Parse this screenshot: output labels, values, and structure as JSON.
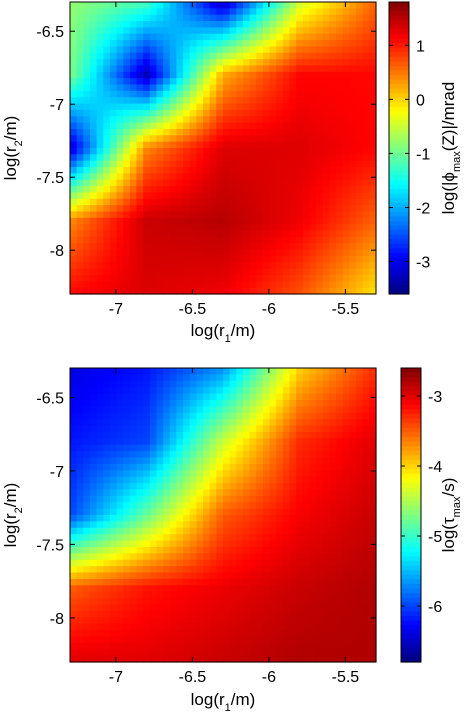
{
  "chart_data": [
    {
      "type": "heatmap",
      "xlabel": {
        "pre": "log(r",
        "sub": "1",
        "post": "/m)"
      },
      "ylabel": {
        "pre": "log(r",
        "sub": "2",
        "post": "/m)"
      },
      "colorbar_label": {
        "pre": "log(|ϕ",
        "sub": "max",
        "post": "(Z)|/mrad"
      },
      "xlim": [
        -7.3,
        -5.3
      ],
      "ylim": [
        -8.3,
        -6.3
      ],
      "xticks": [
        -7,
        -6.5,
        -6,
        -5.5
      ],
      "xtick_labels": [
        "-7",
        "-6.5",
        "-6",
        "-5.5"
      ],
      "yticks": [
        -6.5,
        -7,
        -7.5,
        -8
      ],
      "ytick_labels": [
        "-6.5",
        "-7",
        "-7.5",
        "-8"
      ],
      "clim": [
        -3.6,
        1.8
      ],
      "cbar_ticks": [
        1,
        0,
        -1,
        -2,
        -3
      ],
      "cbar_tick_labels": [
        "1",
        "0",
        "-1",
        "-2",
        "-3"
      ],
      "colormap": "jet",
      "surface_samples": {
        "description_of_axes": "rows: log(r2) from -6.3 to -8.3; columns: log(r1) from -7.3 to -5.3",
        "x": [
          -7.3,
          -6.8,
          -6.3,
          -5.8,
          -5.3
        ],
        "y": [
          -6.3,
          -6.8,
          -7.3,
          -7.8,
          -8.3
        ],
        "z": [
          [
            -0.8,
            -1.2,
            -3.3,
            -0.5,
            0.6
          ],
          [
            -0.9,
            -3.3,
            0.2,
            1.1,
            1.1
          ],
          [
            -3.2,
            0.4,
            1.3,
            1.3,
            1.1
          ],
          [
            0.4,
            1.4,
            1.5,
            1.2,
            0.6
          ],
          [
            1.1,
            1.3,
            1.2,
            0.7,
            -0.1
          ]
        ]
      }
    },
    {
      "type": "heatmap",
      "xlabel": {
        "pre": "log(r",
        "sub": "1",
        "post": "/m)"
      },
      "ylabel": {
        "pre": "log(r",
        "sub": "2",
        "post": "/m)"
      },
      "colorbar_label": {
        "pre": "log(τ",
        "sub": "max",
        "post": "/s)"
      },
      "xlim": [
        -7.3,
        -5.3
      ],
      "ylim": [
        -8.3,
        -6.3
      ],
      "xticks": [
        -7,
        -6.5,
        -6,
        -5.5
      ],
      "xtick_labels": [
        "-7",
        "-6.5",
        "-6",
        "-5.5"
      ],
      "yticks": [
        -6.5,
        -7,
        -7.5,
        -8
      ],
      "ytick_labels": [
        "-6.5",
        "-7",
        "-7.5",
        "-8"
      ],
      "clim": [
        -6.8,
        -2.6
      ],
      "cbar_ticks": [
        -3,
        -4,
        -5,
        -6
      ],
      "cbar_tick_labels": [
        "-3",
        "-4",
        "-5",
        "-6"
      ],
      "colormap": "jet",
      "surface_samples": {
        "description_of_axes": "rows: log(r2) from -6.3 to -8.3; columns: log(r1) from -7.3 to -5.3",
        "x": [
          -7.3,
          -6.8,
          -6.3,
          -5.8,
          -5.3
        ],
        "y": [
          -6.3,
          -6.8,
          -7.3,
          -7.8,
          -8.3
        ],
        "z": [
          [
            -6.4,
            -6.2,
            -5.7,
            -4.0,
            -3.3
          ],
          [
            -6.2,
            -6.0,
            -4.4,
            -3.3,
            -3.0
          ],
          [
            -6.0,
            -4.8,
            -3.5,
            -3.1,
            -2.9
          ],
          [
            -3.5,
            -3.2,
            -3.05,
            -2.9,
            -2.8
          ],
          [
            -3.0,
            -3.0,
            -2.9,
            -2.8,
            -2.8
          ]
        ]
      }
    }
  ]
}
